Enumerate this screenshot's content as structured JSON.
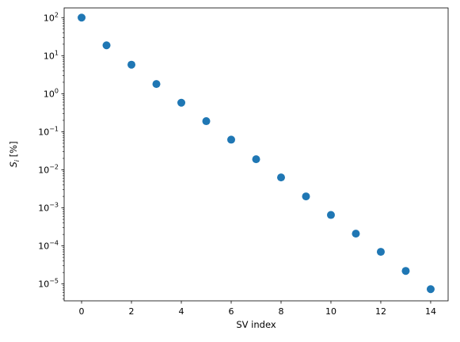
{
  "chart_data": {
    "type": "scatter",
    "title": "",
    "xlabel": "SV index",
    "ylabel": {
      "base": "S",
      "subscript": "i",
      "suffix": " [%]"
    },
    "xlim": [
      -0.7,
      14.7
    ],
    "ylim": [
      3.6e-06,
      180
    ],
    "yscale": "log",
    "grid": false,
    "x_ticks": [
      0,
      2,
      4,
      6,
      8,
      10,
      12,
      14
    ],
    "y_ticks": [
      {
        "base": "10",
        "exp": "2"
      },
      {
        "base": "10",
        "exp": "1"
      },
      {
        "base": "10",
        "exp": "0"
      },
      {
        "base": "10",
        "exp": "−1"
      },
      {
        "base": "10",
        "exp": "−2"
      },
      {
        "base": "10",
        "exp": "−3"
      },
      {
        "base": "10",
        "exp": "−4"
      },
      {
        "base": "10",
        "exp": "−5"
      }
    ],
    "y_tick_values": [
      100,
      10,
      1,
      0.1,
      0.01,
      0.001,
      0.0001,
      1e-05
    ],
    "marker_color": "#1f77b4",
    "x": [
      0,
      1,
      2,
      3,
      4,
      5,
      6,
      7,
      8,
      9,
      10,
      11,
      12,
      13,
      14
    ],
    "y": [
      100,
      18.7,
      5.8,
      1.8,
      0.58,
      0.19,
      0.062,
      0.019,
      0.0063,
      0.002,
      0.00065,
      0.00021,
      7e-05,
      2.2e-05,
      7.3e-06
    ]
  }
}
